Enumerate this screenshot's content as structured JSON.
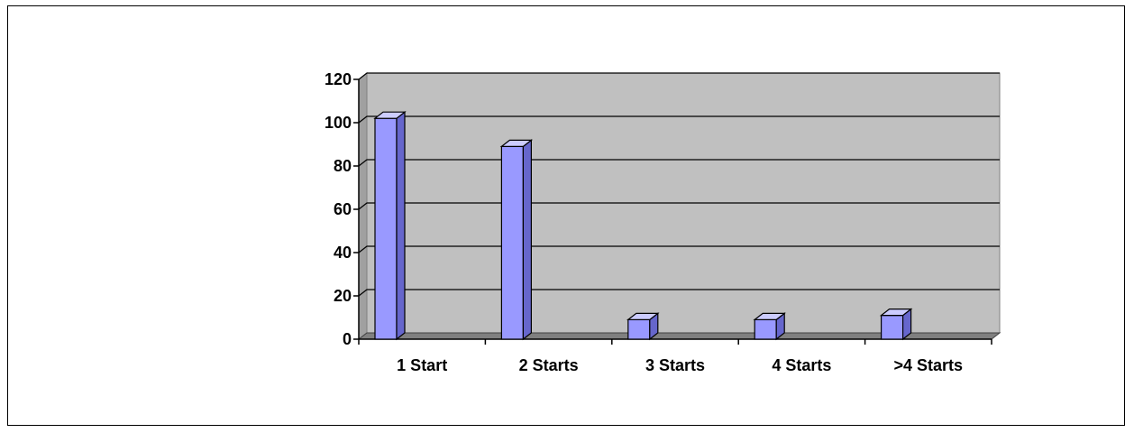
{
  "chart_data": {
    "type": "bar",
    "title": "",
    "xlabel": "",
    "ylabel": "",
    "categories": [
      "1 Start",
      "2 Starts",
      "3 Starts",
      "4 Starts",
      ">4 Starts"
    ],
    "values": [
      102,
      89,
      9,
      9,
      11
    ],
    "ylim": [
      0,
      120
    ],
    "yticks": [
      0,
      20,
      40,
      60,
      80,
      100,
      120
    ],
    "grid": true,
    "legend": "none",
    "style": "3d-bar",
    "colors": {
      "bar_face": "#9999ff",
      "bar_side": "#6666cc",
      "bar_top": "#ccccff",
      "plot_wall": "#c0c0c0",
      "floor": "#808080",
      "gridline": "#000000"
    }
  }
}
